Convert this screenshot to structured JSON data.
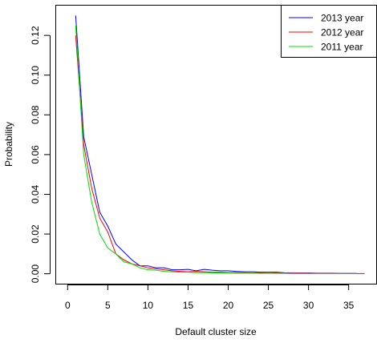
{
  "chart_data": {
    "type": "line",
    "title": "",
    "xlabel": "Default cluster size",
    "ylabel": "Probability",
    "xlim": [
      0,
      37
    ],
    "ylim": [
      0,
      0.13
    ],
    "x_ticks": [
      0,
      5,
      10,
      15,
      20,
      25,
      30,
      35
    ],
    "y_ticks": [
      0.0,
      0.02,
      0.04,
      0.06,
      0.08,
      0.1,
      0.12
    ],
    "x_tick_labels": [
      "0",
      "5",
      "10",
      "15",
      "20",
      "25",
      "30",
      "35"
    ],
    "y_tick_labels": [
      "0.00",
      "0.02",
      "0.04",
      "0.06",
      "0.08",
      "0.10",
      "0.12"
    ],
    "grid": false,
    "legend_position": "top-right",
    "series": [
      {
        "name": "2013 year",
        "color": "#0000ff",
        "x": [
          1,
          2,
          3,
          4,
          5,
          6,
          7,
          8,
          9,
          10,
          11,
          12,
          13,
          14,
          15,
          16,
          17,
          18,
          19,
          20,
          21,
          22,
          23,
          24,
          25,
          26,
          27,
          28,
          29,
          30,
          31,
          32,
          33,
          34,
          35,
          36
        ],
        "values": [
          0.13,
          0.069,
          0.05,
          0.031,
          0.024,
          0.015,
          0.011,
          0.007,
          0.004,
          0.004,
          0.003,
          0.003,
          0.002,
          0.002,
          0.0022,
          0.0015,
          0.0022,
          0.0018,
          0.0015,
          0.0015,
          0.0012,
          0.001,
          0.001,
          0.0008,
          0.0008,
          0.0008,
          0.0005,
          0.0004,
          0.0004,
          0.0004,
          0.0003,
          0.0003,
          0.0003,
          0.0002,
          0.0002,
          0.0002
        ]
      },
      {
        "name": "2012 year",
        "color": "#ff0000",
        "x": [
          1,
          2,
          3,
          4,
          5,
          6,
          7,
          8,
          9,
          10,
          11,
          12,
          13,
          14,
          15,
          16,
          17,
          18,
          19,
          20,
          21,
          22,
          23,
          24,
          25,
          26,
          27,
          28,
          29,
          30,
          31,
          32,
          33,
          34,
          35,
          36,
          37
        ],
        "values": [
          0.12,
          0.065,
          0.043,
          0.028,
          0.021,
          0.01,
          0.007,
          0.005,
          0.004,
          0.003,
          0.0025,
          0.002,
          0.0015,
          0.0012,
          0.001,
          0.0012,
          0.001,
          0.0008,
          0.0008,
          0.0006,
          0.0006,
          0.0005,
          0.0004,
          0.0004,
          0.0003,
          0.0004,
          0.0003,
          0.0003,
          0.0003,
          0.0002,
          0.0002,
          0.0002,
          0.0002,
          0.0001,
          0.0001,
          0.0001,
          0.0001
        ]
      },
      {
        "name": "2011 year",
        "color": "#00dd00",
        "x": [
          1,
          2,
          3,
          4,
          5,
          6,
          7,
          8,
          9,
          10,
          11,
          12,
          13,
          14,
          15,
          16,
          17,
          18,
          19,
          20,
          21,
          22,
          23,
          24,
          25,
          26,
          27,
          28,
          29,
          30,
          31,
          32,
          33,
          34,
          35,
          36
        ],
        "values": [
          0.125,
          0.06,
          0.036,
          0.02,
          0.013,
          0.01,
          0.006,
          0.005,
          0.003,
          0.002,
          0.0018,
          0.0012,
          0.001,
          0.0008,
          0.0008,
          0.0006,
          0.0006,
          0.0005,
          0.0004,
          0.0004,
          0.0003,
          0.0003,
          0.0003,
          0.0002,
          0.0002,
          0.0002,
          0.0002,
          0.0001,
          0.0001,
          0.0001,
          0.0001,
          0.0001,
          0.0001,
          0.0001,
          0.0001,
          0.0001
        ]
      }
    ]
  }
}
